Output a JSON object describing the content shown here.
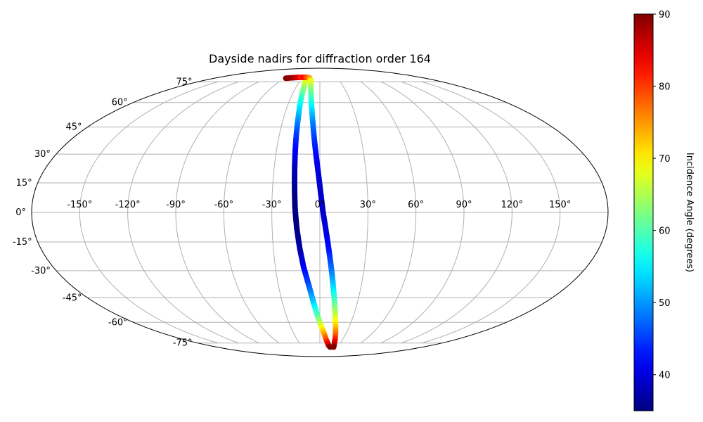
{
  "chart_data": {
    "type": "scatter",
    "projection": "mollweide",
    "title": "Dayside nadirs for diffraction order 164",
    "xlabel": "",
    "ylabel": "",
    "xlim": [
      -180,
      180
    ],
    "ylim": [
      -90,
      90
    ],
    "grid": true,
    "lon_ticks": [
      -150,
      -120,
      -90,
      -60,
      -30,
      0,
      30,
      60,
      90,
      120,
      150
    ],
    "lon_tick_labels": [
      "-150°",
      "-120°",
      "-90°",
      "-60°",
      "-30°",
      "0°",
      "30°",
      "60°",
      "90°",
      "120°",
      "150°"
    ],
    "lat_ticks": [
      75,
      60,
      45,
      30,
      15,
      0,
      -15,
      -30,
      -45,
      -60,
      -75
    ],
    "lat_tick_labels": [
      "75°",
      "60°",
      "45°",
      "30°",
      "15°",
      "0°",
      "-15°",
      "-30°",
      "-45°",
      "-60°",
      "-75°"
    ],
    "colorbar": {
      "label": "Incidence Angle (degrees)",
      "colormap": "jet",
      "range": [
        35,
        90
      ],
      "ticks": [
        40,
        50,
        60,
        70,
        80,
        90
      ]
    },
    "series": [
      {
        "points": [
          {
            "lon": -58,
            "lat": 78,
            "c": 90
          },
          {
            "lon": -52,
            "lat": 78.3,
            "c": 89
          },
          {
            "lon": -45,
            "lat": 78.6,
            "c": 88
          },
          {
            "lon": -38,
            "lat": 78.8,
            "c": 85
          },
          {
            "lon": -30,
            "lat": 78.9,
            "c": 80
          },
          {
            "lon": -25,
            "lat": 78.5,
            "c": 75
          },
          {
            "lon": -22,
            "lat": 76,
            "c": 70
          },
          {
            "lon": -20,
            "lat": 70,
            "c": 64
          },
          {
            "lon": -19,
            "lat": 62,
            "c": 58
          },
          {
            "lon": -18,
            "lat": 52,
            "c": 52
          },
          {
            "lon": -17.5,
            "lat": 42,
            "c": 46
          },
          {
            "lon": -17,
            "lat": 32,
            "c": 42
          },
          {
            "lon": -16.5,
            "lat": 22,
            "c": 38
          },
          {
            "lon": -16,
            "lat": 12,
            "c": 36
          },
          {
            "lon": -15.5,
            "lat": 2,
            "c": 35
          },
          {
            "lon": -14.5,
            "lat": -8,
            "c": 35
          },
          {
            "lon": -13,
            "lat": -18,
            "c": 37
          },
          {
            "lon": -11,
            "lat": -28,
            "c": 41
          },
          {
            "lon": -8,
            "lat": -38,
            "c": 46
          },
          {
            "lon": -5,
            "lat": -48,
            "c": 53
          },
          {
            "lon": -2,
            "lat": -56,
            "c": 60
          },
          {
            "lon": 1,
            "lat": -62,
            "c": 67
          },
          {
            "lon": 5,
            "lat": -68,
            "c": 74
          },
          {
            "lon": 9,
            "lat": -73,
            "c": 80
          },
          {
            "lon": 14,
            "lat": -77,
            "c": 86
          },
          {
            "lon": 18,
            "lat": -78.5,
            "c": 90
          }
        ]
      },
      {
        "points": [
          {
            "lon": -30,
            "lat": 78.9,
            "c": 84
          },
          {
            "lon": -24,
            "lat": 78.8,
            "c": 80
          },
          {
            "lon": -18,
            "lat": 78.3,
            "c": 76
          },
          {
            "lon": -14,
            "lat": 76,
            "c": 70
          },
          {
            "lon": -11,
            "lat": 70,
            "c": 64
          },
          {
            "lon": -9,
            "lat": 63,
            "c": 59
          },
          {
            "lon": -7,
            "lat": 55,
            "c": 54
          },
          {
            "lon": -5.5,
            "lat": 47,
            "c": 49
          },
          {
            "lon": -4,
            "lat": 38,
            "c": 45
          },
          {
            "lon": -2.5,
            "lat": 29,
            "c": 42
          },
          {
            "lon": -1,
            "lat": 20,
            "c": 40
          },
          {
            "lon": 0.5,
            "lat": 10,
            "c": 39
          },
          {
            "lon": 2,
            "lat": 0,
            "c": 39
          },
          {
            "lon": 4,
            "lat": -10,
            "c": 40
          },
          {
            "lon": 6,
            "lat": -20,
            "c": 43
          },
          {
            "lon": 8,
            "lat": -30,
            "c": 48
          },
          {
            "lon": 10,
            "lat": -40,
            "c": 54
          },
          {
            "lon": 12,
            "lat": -49,
            "c": 61
          },
          {
            "lon": 14,
            "lat": -57,
            "c": 67
          },
          {
            "lon": 16.5,
            "lat": -64,
            "c": 73
          },
          {
            "lon": 19,
            "lat": -70,
            "c": 79
          },
          {
            "lon": 21.5,
            "lat": -75,
            "c": 85
          },
          {
            "lon": 24,
            "lat": -78.5,
            "c": 90
          }
        ]
      }
    ]
  }
}
